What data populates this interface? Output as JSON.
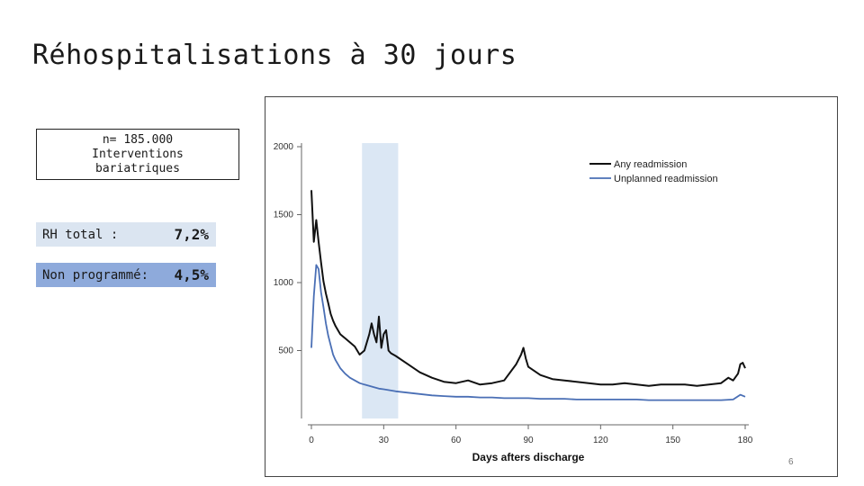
{
  "slide": {
    "title": "Réhospitalisations à 30 jours",
    "page_number": "6"
  },
  "info_box": {
    "line1": "n= 185.000",
    "line2": "Interventions",
    "line3": "bariatriques"
  },
  "rates": {
    "total_label": "RH total :",
    "total_value": "7,2%",
    "unplanned_label": "Non programmé:",
    "unplanned_value": "4,5%"
  },
  "colors": {
    "any_readmission": "#111111",
    "unplanned_readmission": "#4a6fb5",
    "highlight_band": "#dbe7f4",
    "rh_total_bg": "#dbe5f1",
    "rh_unplanned_bg": "#8eaadb"
  },
  "chart_data": {
    "type": "line",
    "xlabel": "Days afters discharge",
    "ylabel": "",
    "xlim": [
      0,
      180
    ],
    "ylim": [
      0,
      2000
    ],
    "x_ticks": [
      0,
      30,
      60,
      90,
      120,
      150,
      180
    ],
    "y_ticks": [
      500,
      1000,
      1500,
      2000
    ],
    "highlight_x_range": [
      21,
      36
    ],
    "legend_position": "top-right",
    "series": [
      {
        "name": "Any readmission",
        "points": [
          [
            0,
            1680
          ],
          [
            1,
            1300
          ],
          [
            2,
            1460
          ],
          [
            3,
            1300
          ],
          [
            4,
            1150
          ],
          [
            5,
            1010
          ],
          [
            6,
            920
          ],
          [
            7,
            850
          ],
          [
            8,
            770
          ],
          [
            9,
            720
          ],
          [
            10,
            680
          ],
          [
            12,
            620
          ],
          [
            14,
            590
          ],
          [
            16,
            560
          ],
          [
            18,
            530
          ],
          [
            20,
            470
          ],
          [
            22,
            500
          ],
          [
            24,
            620
          ],
          [
            25,
            700
          ],
          [
            26,
            620
          ],
          [
            27,
            560
          ],
          [
            28,
            750
          ],
          [
            29,
            520
          ],
          [
            30,
            620
          ],
          [
            31,
            650
          ],
          [
            32,
            500
          ],
          [
            33,
            480
          ],
          [
            35,
            460
          ],
          [
            40,
            400
          ],
          [
            45,
            340
          ],
          [
            50,
            300
          ],
          [
            55,
            270
          ],
          [
            60,
            260
          ],
          [
            65,
            280
          ],
          [
            70,
            250
          ],
          [
            75,
            260
          ],
          [
            80,
            280
          ],
          [
            85,
            400
          ],
          [
            87,
            470
          ],
          [
            88,
            520
          ],
          [
            89,
            440
          ],
          [
            90,
            380
          ],
          [
            95,
            320
          ],
          [
            100,
            290
          ],
          [
            105,
            280
          ],
          [
            110,
            270
          ],
          [
            115,
            260
          ],
          [
            120,
            250
          ],
          [
            125,
            250
          ],
          [
            130,
            260
          ],
          [
            135,
            250
          ],
          [
            140,
            240
          ],
          [
            145,
            250
          ],
          [
            150,
            250
          ],
          [
            155,
            250
          ],
          [
            160,
            240
          ],
          [
            165,
            250
          ],
          [
            170,
            260
          ],
          [
            173,
            300
          ],
          [
            175,
            280
          ],
          [
            177,
            330
          ],
          [
            178,
            400
          ],
          [
            179,
            410
          ],
          [
            180,
            370
          ]
        ]
      },
      {
        "name": "Unplanned readmission",
        "points": [
          [
            0,
            520
          ],
          [
            1,
            900
          ],
          [
            2,
            1130
          ],
          [
            3,
            1100
          ],
          [
            4,
            930
          ],
          [
            5,
            820
          ],
          [
            6,
            700
          ],
          [
            7,
            610
          ],
          [
            8,
            540
          ],
          [
            9,
            470
          ],
          [
            10,
            430
          ],
          [
            12,
            370
          ],
          [
            14,
            330
          ],
          [
            16,
            300
          ],
          [
            18,
            280
          ],
          [
            20,
            260
          ],
          [
            22,
            250
          ],
          [
            24,
            240
          ],
          [
            26,
            230
          ],
          [
            28,
            220
          ],
          [
            30,
            215
          ],
          [
            35,
            200
          ],
          [
            40,
            190
          ],
          [
            45,
            180
          ],
          [
            50,
            170
          ],
          [
            55,
            165
          ],
          [
            60,
            160
          ],
          [
            65,
            160
          ],
          [
            70,
            155
          ],
          [
            75,
            155
          ],
          [
            80,
            150
          ],
          [
            85,
            150
          ],
          [
            90,
            150
          ],
          [
            95,
            145
          ],
          [
            100,
            145
          ],
          [
            105,
            145
          ],
          [
            110,
            140
          ],
          [
            115,
            140
          ],
          [
            120,
            140
          ],
          [
            125,
            140
          ],
          [
            130,
            140
          ],
          [
            135,
            140
          ],
          [
            140,
            135
          ],
          [
            145,
            135
          ],
          [
            150,
            135
          ],
          [
            155,
            135
          ],
          [
            160,
            135
          ],
          [
            165,
            135
          ],
          [
            170,
            135
          ],
          [
            175,
            140
          ],
          [
            178,
            175
          ],
          [
            180,
            160
          ]
        ]
      }
    ]
  }
}
